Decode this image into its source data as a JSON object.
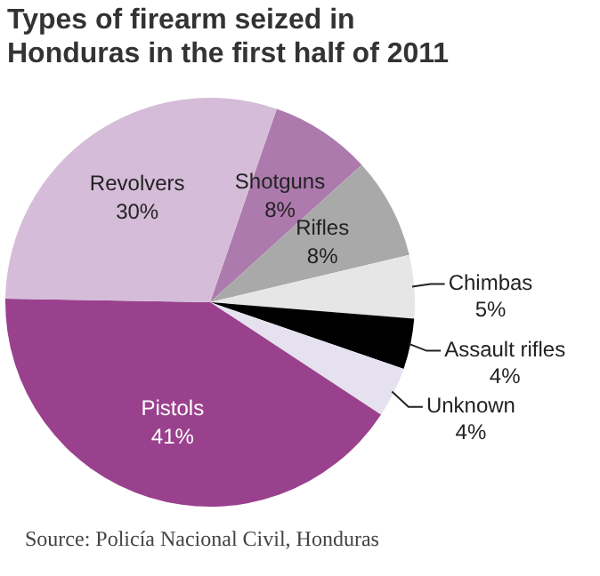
{
  "chart_data": {
    "type": "pie",
    "title": "Types of firearm seized in Honduras in the first half of 2011",
    "categories": [
      "Shotguns",
      "Rifles",
      "Chimbas",
      "Assault rifles",
      "Unknown",
      "Pistols",
      "Revolvers"
    ],
    "values": [
      8,
      8,
      5,
      4,
      4,
      41,
      30
    ],
    "colors": [
      "#ad7aad",
      "#a9a9a9",
      "#e6e6e6",
      "#000000",
      "#e5e1ee",
      "#9a418e",
      "#d5bcd8"
    ],
    "value_labels": [
      "8%",
      "8%",
      "5%",
      "4%",
      "4%",
      "41%",
      "30%"
    ],
    "annotations": [
      "Source: Policía Nacional Civil, Honduras"
    ]
  }
}
